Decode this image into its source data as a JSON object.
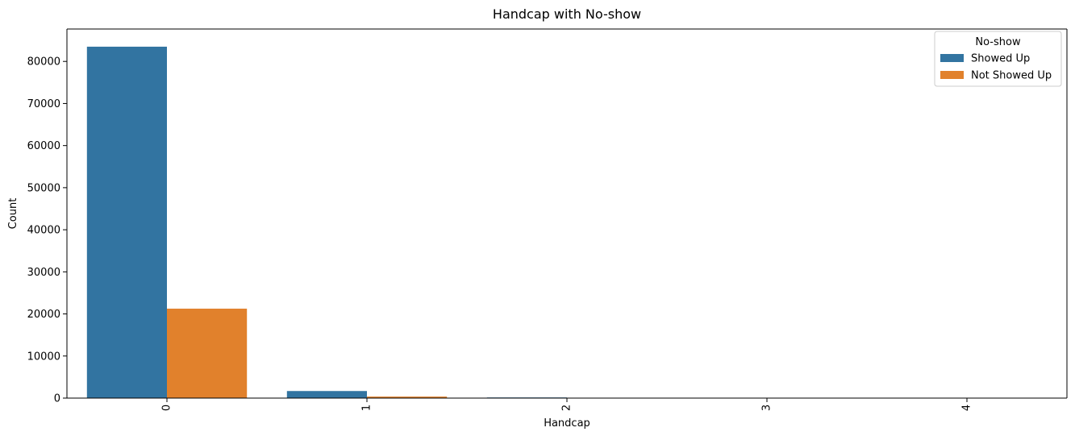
{
  "chart_data": {
    "type": "bar",
    "title": "Handcap with No-show",
    "xlabel": "Handcap",
    "ylabel": "Count",
    "categories": [
      "0",
      "1",
      "2",
      "3",
      "4"
    ],
    "series": [
      {
        "name": "Showed Up",
        "color": "#3274a1",
        "values": [
          83500,
          1680,
          150,
          10,
          2
        ]
      },
      {
        "name": "Not Showed Up",
        "color": "#e1812c",
        "values": [
          21250,
          360,
          35,
          3,
          1
        ]
      }
    ],
    "ylim": [
      0,
      87700
    ],
    "yticks": [
      0,
      10000,
      20000,
      30000,
      40000,
      50000,
      60000,
      70000,
      80000
    ],
    "xtick_rotation": 90,
    "grid": false,
    "legend": {
      "title": "No-show",
      "placement": "top-right",
      "entries": [
        "Showed Up",
        "Not Showed Up"
      ]
    }
  }
}
